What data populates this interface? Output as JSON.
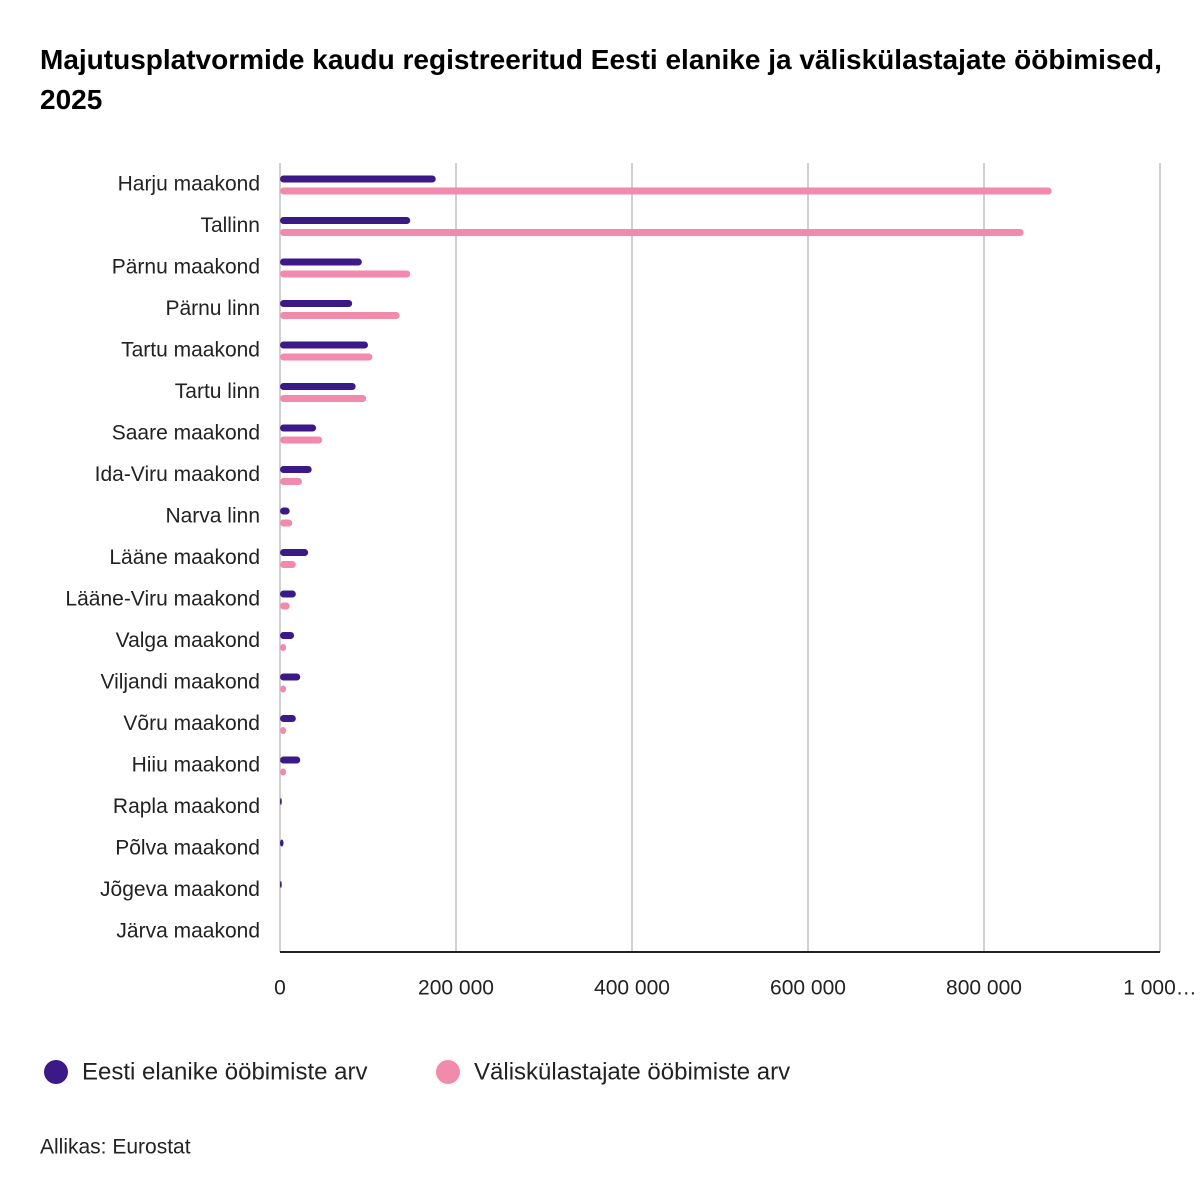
{
  "chart_data": {
    "type": "hbar",
    "title": "Majutusplatvormide kaudu registreeritud Eesti elanike ja väliskülastajate ööbimised, 2025",
    "categories": [
      "Harju maakond",
      "Tallinn",
      "Pärnu maakond",
      "Pärnu linn",
      "Tartu maakond",
      "Tartu linn",
      "Saare maakond",
      "Ida-Viru maakond",
      "Narva linn",
      "Lääne maakond",
      "Lääne-Viru maakond",
      "Valga maakond",
      "Viljandi maakond",
      "Võru maakond",
      "Hiiu maakond",
      "Rapla maakond",
      "Põlva maakond",
      "Jõgeva maakond",
      "Järva maakond"
    ],
    "series": [
      {
        "name": "Eesti elanike ööbimiste arv",
        "color": "#3b1a87",
        "values": [
          177000,
          148000,
          93000,
          82000,
          100000,
          86000,
          41000,
          36000,
          11000,
          32000,
          18000,
          16000,
          23000,
          18000,
          23000,
          2000,
          4000,
          2000,
          null
        ]
      },
      {
        "name": "Väliskülastajate ööbimiste arv",
        "color": "#f28aab",
        "values": [
          877000,
          845000,
          148000,
          136000,
          105000,
          98000,
          48000,
          25000,
          14000,
          18000,
          11000,
          7000,
          7000,
          7000,
          7000,
          null,
          null,
          null,
          null
        ]
      }
    ],
    "xlim": [
      0,
      1000000
    ],
    "xticks": [
      0,
      {
        "value": 200000,
        "label": "200 000"
      },
      {
        "value": 400000,
        "label": "400 000"
      },
      {
        "value": 600000,
        "label": "600 000"
      },
      {
        "value": 800000,
        "label": "800 000"
      },
      {
        "value": 1000000,
        "label": "1 000…"
      }
    ],
    "grid": true,
    "legend": "bottom",
    "source": "Allikas: Eurostat"
  }
}
